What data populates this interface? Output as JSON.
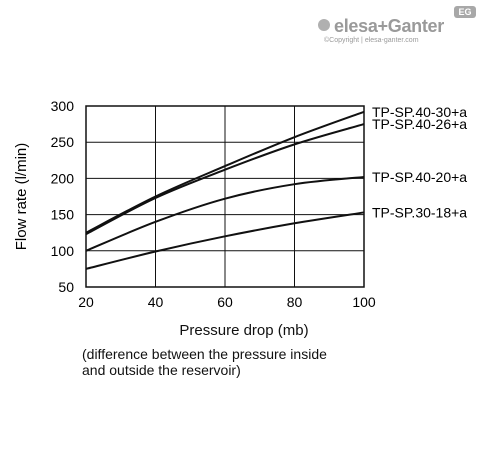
{
  "brand": {
    "name": "elesa+Ganter",
    "badge": "EG",
    "copyright": "©Copyright | elesa-ganter.com"
  },
  "chart_data": {
    "type": "line",
    "xlabel": "Pressure drop (mb)",
    "xlabel_note": [
      "(difference between the pressure inside",
      "and outside the reservoir)"
    ],
    "ylabel": "Flow rate (l/min)",
    "xlim": [
      20,
      100
    ],
    "ylim": [
      50,
      300
    ],
    "xticks": [
      20,
      40,
      60,
      80,
      100
    ],
    "yticks": [
      50,
      100,
      150,
      200,
      250,
      300
    ],
    "grid": true,
    "legend": "direct labels at right end of each line",
    "series": [
      {
        "name": "TP-SP.40-30+a",
        "x": [
          20,
          40,
          60,
          80,
          100
        ],
        "y": [
          125,
          175,
          217,
          257,
          292
        ]
      },
      {
        "name": "TP-SP.40-26+a",
        "x": [
          20,
          40,
          60,
          80,
          100
        ],
        "y": [
          123,
          173,
          212,
          247,
          275
        ]
      },
      {
        "name": "TP-SP.40-20+a",
        "x": [
          20,
          40,
          60,
          80,
          100
        ],
        "y": [
          100,
          140,
          172,
          192,
          202
        ]
      },
      {
        "name": "TP-SP.30-18+a",
        "x": [
          20,
          40,
          60,
          80,
          100
        ],
        "y": [
          75,
          99,
          120,
          138,
          153
        ]
      }
    ]
  }
}
